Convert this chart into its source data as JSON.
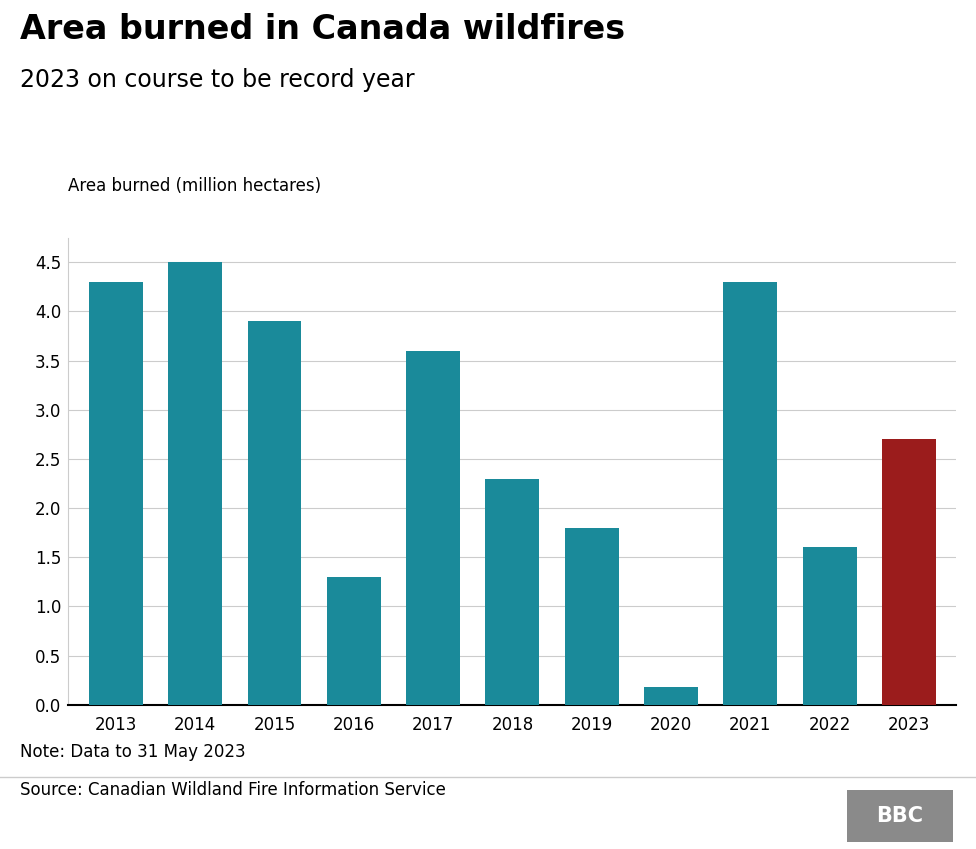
{
  "title": "Area burned in Canada wildfires",
  "subtitle": "2023 on course to be record year",
  "ylabel": "Area burned (million hectares)",
  "note": "Note: Data to 31 May 2023",
  "source": "Source: Canadian Wildland Fire Information Service",
  "years": [
    2013,
    2014,
    2015,
    2016,
    2017,
    2018,
    2019,
    2020,
    2021,
    2022,
    2023
  ],
  "values": [
    4.3,
    4.5,
    3.9,
    1.3,
    3.6,
    2.3,
    1.8,
    0.18,
    4.3,
    1.6,
    2.7
  ],
  "bar_colors": [
    "#1a8a9a",
    "#1a8a9a",
    "#1a8a9a",
    "#1a8a9a",
    "#1a8a9a",
    "#1a8a9a",
    "#1a8a9a",
    "#1a8a9a",
    "#1a8a9a",
    "#1a8a9a",
    "#9b1c1c"
  ],
  "ylim": [
    0,
    4.75
  ],
  "yticks": [
    0.0,
    0.5,
    1.0,
    1.5,
    2.0,
    2.5,
    3.0,
    3.5,
    4.0,
    4.5
  ],
  "background_color": "#ffffff",
  "title_fontsize": 24,
  "subtitle_fontsize": 17,
  "ylabel_fontsize": 12,
  "tick_fontsize": 12,
  "note_fontsize": 12,
  "source_fontsize": 12,
  "bbc_bg": "#8a8a8a"
}
